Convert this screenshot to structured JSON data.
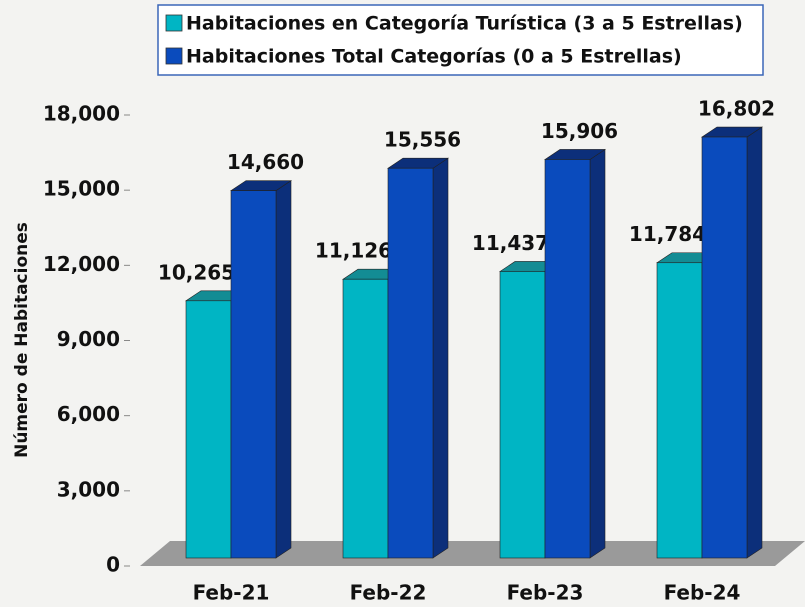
{
  "chart_data": {
    "type": "bar3d",
    "y_axis_label": "Número de Habitaciones",
    "categories": [
      "Feb-21",
      "Feb-22",
      "Feb-23",
      "Feb-24"
    ],
    "series": [
      {
        "name": "Habitaciones en Categoría Turística (3 a 5 Estrellas)",
        "color": "#00b5c4",
        "values": [
          10265,
          11126,
          11437,
          11784
        ],
        "value_labels": [
          "10,265",
          "11,126",
          "11,437",
          "11,784"
        ]
      },
      {
        "name": "Habitaciones Total Categorías (0 a 5 Estrellas)",
        "color": "#0a4bbd",
        "values": [
          14660,
          15556,
          15906,
          16802
        ],
        "value_labels": [
          "14,660",
          "15,556",
          "15,906",
          "16,802"
        ]
      }
    ],
    "ylim": [
      0,
      18000
    ],
    "yticks": [
      0,
      {
        "value": 3000,
        "label": "3,000"
      },
      {
        "value": 6000,
        "label": "6,000"
      },
      {
        "value": 9000,
        "label": "9,000"
      },
      {
        "value": 12000,
        "label": "12,000"
      },
      {
        "value": 15000,
        "label": "15,000"
      },
      {
        "value": 18000,
        "label": "18,000"
      }
    ],
    "legend": "top"
  }
}
